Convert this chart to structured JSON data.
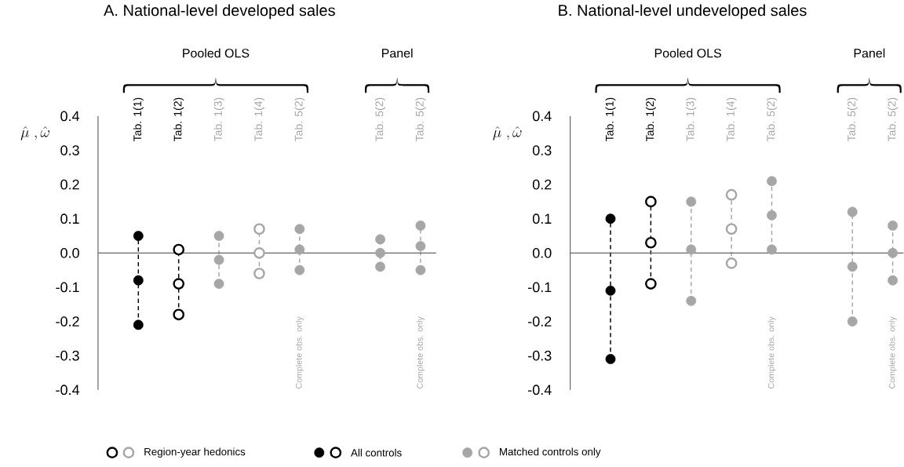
{
  "chart_data": [
    {
      "type": "scatter",
      "title": "A. National-level developed sales",
      "ylabel": "\\hat{\\mu}\\ ,\\hat{\\omega}",
      "categories": [
        "Tab. 1(1)",
        "Tab. 1(2)",
        "Tab. 1(3)",
        "Tab. 1(4)",
        "Tab. 5(2)",
        null,
        "Tab. 5(2)",
        "Tab. 5(2)"
      ],
      "ylim": [
        -0.4,
        0.4
      ],
      "yticks": [
        -0.4,
        -0.3,
        -0.2,
        -0.1,
        {
          "value": 0,
          "label": "0.0"
        },
        0.1,
        0.2,
        0.3,
        0.4
      ],
      "line_style": "dashed",
      "series": [
        {
          "color": "#000000",
          "marker": "circle",
          "values": [
            0.05,
            null,
            null,
            null,
            null,
            null,
            null,
            null
          ]
        },
        {
          "color": "#000000",
          "marker": "circle",
          "values": [
            -0.08,
            null,
            null,
            null,
            null,
            null,
            null,
            null
          ]
        },
        {
          "color": "#000000",
          "marker": "circle",
          "values": [
            -0.21,
            null,
            null,
            null,
            null,
            null,
            null,
            null
          ]
        },
        {
          "color": "#000000",
          "marker": "open circle",
          "values": [
            null,
            0.01,
            null,
            null,
            null,
            null,
            null,
            null
          ]
        },
        {
          "color": "#000000",
          "marker": "open circle",
          "values": [
            null,
            -0.09,
            null,
            null,
            null,
            null,
            null,
            null
          ]
        },
        {
          "color": "#000000",
          "marker": "open circle",
          "values": [
            null,
            -0.18,
            null,
            null,
            null,
            null,
            null,
            null
          ]
        },
        {
          "color": "#a6a6a6",
          "marker": "circle",
          "values": [
            null,
            null,
            0.05,
            null,
            0.07,
            null,
            0.04,
            0.08
          ]
        },
        {
          "color": "#a6a6a6",
          "marker": "circle",
          "values": [
            null,
            null,
            -0.02,
            null,
            0.01,
            null,
            0.0,
            0.02
          ]
        },
        {
          "color": "#a6a6a6",
          "marker": "circle",
          "values": [
            null,
            null,
            -0.09,
            null,
            -0.05,
            null,
            -0.04,
            -0.05
          ]
        },
        {
          "color": "#a6a6a6",
          "marker": "open circle",
          "values": [
            null,
            null,
            null,
            0.07,
            null,
            null,
            null,
            null
          ]
        },
        {
          "color": "#a6a6a6",
          "marker": "open circle",
          "values": [
            null,
            null,
            null,
            0.0,
            null,
            null,
            null,
            null
          ]
        },
        {
          "color": "#a6a6a6",
          "marker": "open circle",
          "values": [
            null,
            null,
            null,
            -0.06,
            null,
            null,
            null,
            null
          ]
        }
      ],
      "annotations": [
        "Pooled OLS",
        "Panel",
        "Complete obs. only",
        "Complete obs. only",
        "Region-year hedonics",
        "All controls",
        "Matched controls only"
      ]
    },
    {
      "type": "scatter",
      "title": "B. National-level undeveloped sales",
      "ylabel": "\\hat{\\mu}\\ ,\\hat{\\omega}",
      "categories": [
        "Tab. 1(1)",
        "Tab. 1(2)",
        "Tab. 1(3)",
        "Tab. 1(4)",
        "Tab. 5(2)",
        null,
        "Tab. 5(2)",
        "Tab. 5(2)"
      ],
      "ylim": [
        -0.4,
        0.4
      ],
      "yticks": [
        -0.4,
        -0.3,
        -0.2,
        -0.1,
        {
          "value": 0,
          "label": "0.0"
        },
        0.1,
        0.2,
        0.3,
        0.4
      ],
      "line_style": "dashed",
      "series": [
        {
          "color": "#000000",
          "marker": "circle",
          "values": [
            0.1,
            null,
            null,
            null,
            null,
            null,
            null,
            null
          ]
        },
        {
          "color": "#000000",
          "marker": "circle",
          "values": [
            -0.11,
            null,
            null,
            null,
            null,
            null,
            null,
            null
          ]
        },
        {
          "color": "#000000",
          "marker": "circle",
          "values": [
            -0.31,
            null,
            null,
            null,
            null,
            null,
            null,
            null
          ]
        },
        {
          "color": "#000000",
          "marker": "open circle",
          "values": [
            null,
            0.15,
            null,
            null,
            null,
            null,
            null,
            null
          ]
        },
        {
          "color": "#000000",
          "marker": "open circle",
          "values": [
            null,
            0.03,
            null,
            null,
            null,
            null,
            null,
            null
          ]
        },
        {
          "color": "#000000",
          "marker": "open circle",
          "values": [
            null,
            -0.09,
            null,
            null,
            null,
            null,
            null,
            null
          ]
        },
        {
          "color": "#a6a6a6",
          "marker": "circle",
          "values": [
            null,
            null,
            0.15,
            null,
            0.21,
            null,
            0.12,
            0.08
          ]
        },
        {
          "color": "#a6a6a6",
          "marker": "circle",
          "values": [
            null,
            null,
            0.01,
            null,
            0.11,
            null,
            -0.04,
            0.0
          ]
        },
        {
          "color": "#a6a6a6",
          "marker": "circle",
          "values": [
            null,
            null,
            -0.14,
            null,
            0.01,
            null,
            -0.2,
            -0.08
          ]
        },
        {
          "color": "#a6a6a6",
          "marker": "open circle",
          "values": [
            null,
            null,
            null,
            0.17,
            null,
            null,
            null,
            null
          ]
        },
        {
          "color": "#a6a6a6",
          "marker": "open circle",
          "values": [
            null,
            null,
            null,
            0.07,
            null,
            null,
            null,
            null
          ]
        },
        {
          "color": "#a6a6a6",
          "marker": "open circle",
          "values": [
            null,
            null,
            null,
            -0.03,
            null,
            null,
            null,
            null
          ]
        }
      ],
      "annotations": [
        "Pooled OLS",
        "Panel",
        "Complete obs. only",
        "Complete obs. only"
      ]
    }
  ]
}
